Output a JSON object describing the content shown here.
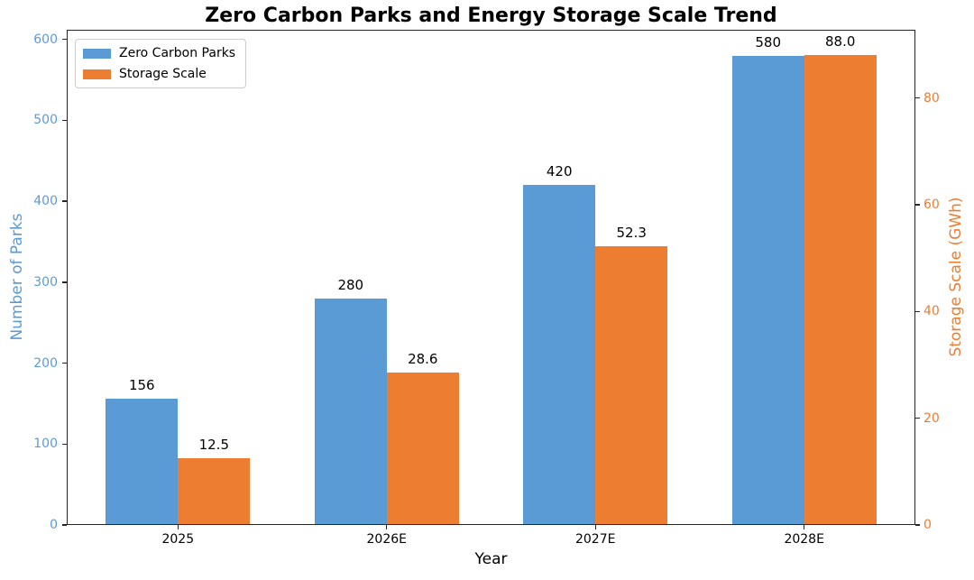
{
  "chart_data": {
    "type": "bar",
    "title": "Zero Carbon Parks and Energy Storage Scale Trend",
    "categories": [
      "2025",
      "2026E",
      "2027E",
      "2028E"
    ],
    "series": [
      {
        "name": "Zero Carbon Parks",
        "axis": "left",
        "color": "#5B9BD5",
        "values": [
          156,
          280,
          420,
          580
        ],
        "value_labels": [
          "156",
          "280",
          "420",
          "580"
        ]
      },
      {
        "name": "Storage Scale",
        "axis": "right",
        "color": "#ED7D31",
        "values": [
          12.5,
          28.6,
          52.3,
          88.0
        ],
        "value_labels": [
          "12.5",
          "28.6",
          "52.3",
          "88.0"
        ]
      }
    ],
    "axes": {
      "left": {
        "label": "Number of Parks",
        "color": "#5B9BD5",
        "ticks": [
          0,
          100,
          200,
          300,
          400,
          500,
          600
        ],
        "lim": [
          0,
          612
        ]
      },
      "right": {
        "label": "Storage Scale (GWh)",
        "color": "#ED7D31",
        "ticks": [
          0,
          20,
          40,
          60,
          80
        ],
        "lim": [
          0,
          92.8
        ]
      },
      "x": {
        "label": "Year",
        "tick_labels": [
          "2025",
          "2026E",
          "2027E",
          "2028E"
        ]
      }
    },
    "legend": {
      "position": "upper-left"
    },
    "grid": false,
    "background": "#FFFFFF"
  }
}
